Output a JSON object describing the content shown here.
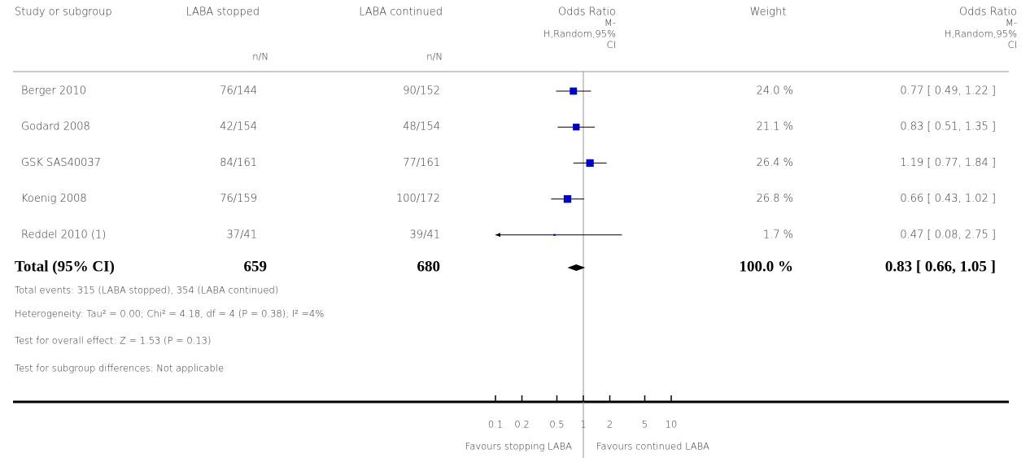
{
  "chart_data": {
    "type": "forest",
    "header": {
      "study": "Study or subgroup",
      "stopped": "LABA stopped",
      "stopped_unit": "n/N",
      "continued": "LABA continued",
      "continued_unit": "n/N",
      "plot": [
        "Odds Ratio",
        "M-",
        "H,Random,95%",
        "CI"
      ],
      "weight": "Weight",
      "effect": [
        "Odds Ratio",
        "M-",
        "H,Random,95%",
        "CI"
      ]
    },
    "studies": [
      {
        "name": "Berger 2010",
        "stopped": "76/144",
        "continued": "90/152",
        "or": 0.77,
        "ci": [
          0.49,
          1.22
        ],
        "weight": 24.0,
        "weight_label": "24.0 %",
        "or_label": "0.77 [ 0.49, 1.22 ]"
      },
      {
        "name": "Godard 2008",
        "stopped": "42/154",
        "continued": "48/154",
        "or": 0.83,
        "ci": [
          0.51,
          1.35
        ],
        "weight": 21.1,
        "weight_label": "21.1 %",
        "or_label": "0.83 [ 0.51, 1.35 ]"
      },
      {
        "name": "GSK SAS40037",
        "stopped": "84/161",
        "continued": "77/161",
        "or": 1.19,
        "ci": [
          0.77,
          1.84
        ],
        "weight": 26.4,
        "weight_label": "26.4 %",
        "or_label": "1.19 [ 0.77, 1.84 ]"
      },
      {
        "name": "Koenig 2008",
        "stopped": "76/159",
        "continued": "100/172",
        "or": 0.66,
        "ci": [
          0.43,
          1.02
        ],
        "weight": 26.8,
        "weight_label": "26.8 %",
        "or_label": "0.66 [ 0.43, 1.02 ]"
      },
      {
        "name": "Reddel 2010 (1)",
        "stopped": "37/41",
        "continued": "39/41",
        "or": 0.47,
        "ci": [
          0.08,
          2.75
        ],
        "weight": 1.7,
        "weight_label": "1.7 %",
        "or_label": "0.47 [ 0.08, 2.75 ]"
      }
    ],
    "total": {
      "name": "Total (95% CI)",
      "stopped": 659,
      "continued": 680,
      "or": 0.83,
      "ci": [
        0.66,
        1.05
      ],
      "weight": 100.0,
      "weight_label": "100.0 %",
      "or_label": "0.83 [ 0.66, 1.05 ]"
    },
    "notes": [
      "Total events: 315 (LABA stopped), 354 (LABA continued)",
      "Heterogeneity: Tau² = 0.00; Chi² = 4.18, df = 4 (P = 0.38); I² =4%",
      "Test for overall effect: Z = 1.53 (P = 0.13)",
      "Test for subgroup differences: Not applicable"
    ],
    "log_scale": true,
    "xlim": [
      0.1,
      10
    ],
    "xticks": [
      0.1,
      0.2,
      0.5,
      1,
      2,
      5,
      10
    ],
    "reference": 1,
    "xlabel_left": "Favours stopping LABA",
    "xlabel_right": "Favours continued LABA",
    "color": "#0000cc"
  }
}
